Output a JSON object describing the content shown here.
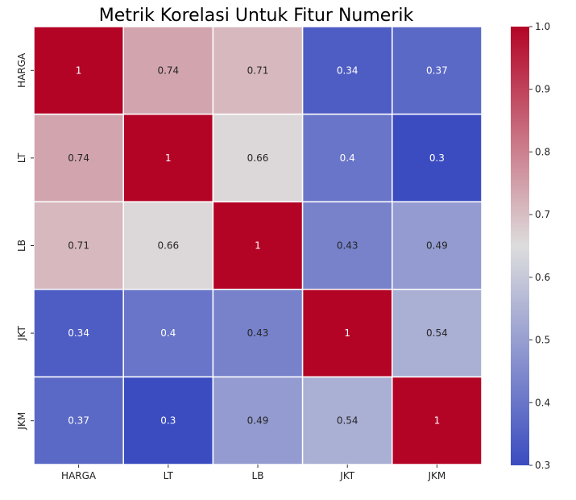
{
  "chart_data": {
    "type": "heatmap",
    "title": "Metrik Korelasi Untuk Fitur Numerik",
    "xlabel": "",
    "ylabel": "",
    "x_categories": [
      "HARGA",
      "LT",
      "LB",
      "JKT",
      "JKM"
    ],
    "y_categories": [
      "HARGA",
      "LT",
      "LB",
      "JKT",
      "JKM"
    ],
    "values": [
      [
        1,
        0.74,
        0.71,
        0.34,
        0.37
      ],
      [
        0.74,
        1,
        0.66,
        0.4,
        0.3
      ],
      [
        0.71,
        0.66,
        1,
        0.43,
        0.49
      ],
      [
        0.34,
        0.4,
        0.43,
        1,
        0.54
      ],
      [
        0.37,
        0.3,
        0.49,
        0.54,
        1
      ]
    ],
    "cell_labels": [
      [
        "1",
        "0.74",
        "0.71",
        "0.34",
        "0.37"
      ],
      [
        "0.74",
        "1",
        "0.66",
        "0.4",
        "0.3"
      ],
      [
        "0.71",
        "0.66",
        "1",
        "0.43",
        "0.49"
      ],
      [
        "0.34",
        "0.4",
        "0.43",
        "1",
        "0.54"
      ],
      [
        "0.37",
        "0.3",
        "0.49",
        "0.54",
        "1"
      ]
    ],
    "colormap": "coolwarm",
    "color_stops": [
      "#3b4cc0",
      "#dddddd",
      "#b40426"
    ],
    "colorbar": {
      "range": [
        0.3,
        1.0
      ],
      "ticks": [
        "0.3",
        "0.4",
        "0.5",
        "0.6",
        "0.7",
        "0.8",
        "0.9",
        "1.0"
      ]
    },
    "grid": true,
    "cell_border_color": "#ffffff",
    "legend_position": "right"
  }
}
